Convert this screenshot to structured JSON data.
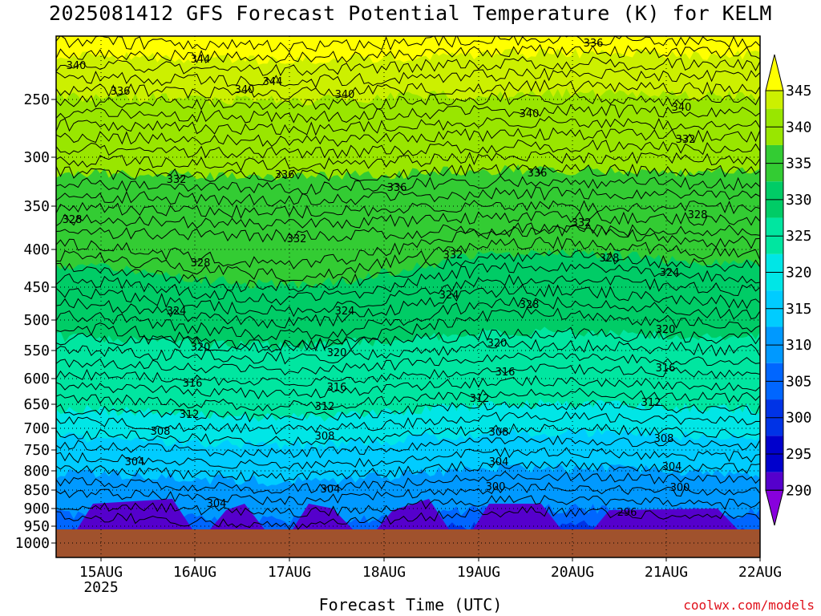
{
  "title": "2025081412 GFS Forecast Potential Temperature (K) for KELM",
  "x_axis_title": "Forecast Time (UTC)",
  "credit": "coolwx.com/models",
  "chart_data": {
    "type": "heatmap",
    "title": "2025081412 GFS Forecast Potential Temperature (K) for KELM",
    "xlabel": "Forecast Time (UTC)",
    "ylabel": "",
    "x_ticks": [
      {
        "label": "15AUG",
        "sub": "2025"
      },
      {
        "label": "16AUG",
        "sub": ""
      },
      {
        "label": "17AUG",
        "sub": ""
      },
      {
        "label": "18AUG",
        "sub": ""
      },
      {
        "label": "19AUG",
        "sub": ""
      },
      {
        "label": "20AUG",
        "sub": ""
      },
      {
        "label": "21AUG",
        "sub": ""
      },
      {
        "label": "22AUG",
        "sub": ""
      }
    ],
    "y_ticks": [
      "250",
      "300",
      "350",
      "400",
      "450",
      "500",
      "550",
      "600",
      "650",
      "700",
      "750",
      "800",
      "850",
      "900",
      "950",
      "1000"
    ],
    "pressure_levels_hpa": [
      250,
      300,
      350,
      400,
      450,
      500,
      550,
      600,
      650,
      700,
      750,
      800,
      850,
      900,
      950,
      1000
    ],
    "colorbar_levels": [
      "345",
      "340",
      "335",
      "330",
      "325",
      "320",
      "315",
      "310",
      "305",
      "300",
      "295",
      "290"
    ],
    "colorbar_colors": [
      "#ffff00",
      "#ccf000",
      "#99e600",
      "#33cc33",
      "#00cc66",
      "#00e6a0",
      "#00e6e6",
      "#00ccff",
      "#0099ff",
      "#0066ff",
      "#0033e6",
      "#0000cc",
      "#5500cc",
      "#8800dd"
    ],
    "surface_color": "#a0522d",
    "grid": true,
    "contour_labels": [
      "340",
      "344",
      "336",
      "340",
      "340",
      "344",
      "340",
      "340",
      "336",
      "332",
      "336",
      "336",
      "336",
      "332",
      "332",
      "328",
      "332",
      "332",
      "328",
      "328",
      "328",
      "324",
      "324",
      "324",
      "328",
      "324",
      "320",
      "320",
      "320",
      "320",
      "316",
      "316",
      "316",
      "316",
      "312",
      "312",
      "312",
      "312",
      "308",
      "308",
      "308",
      "308",
      "304",
      "304",
      "304",
      "304",
      "304",
      "300",
      "300",
      "296"
    ]
  }
}
